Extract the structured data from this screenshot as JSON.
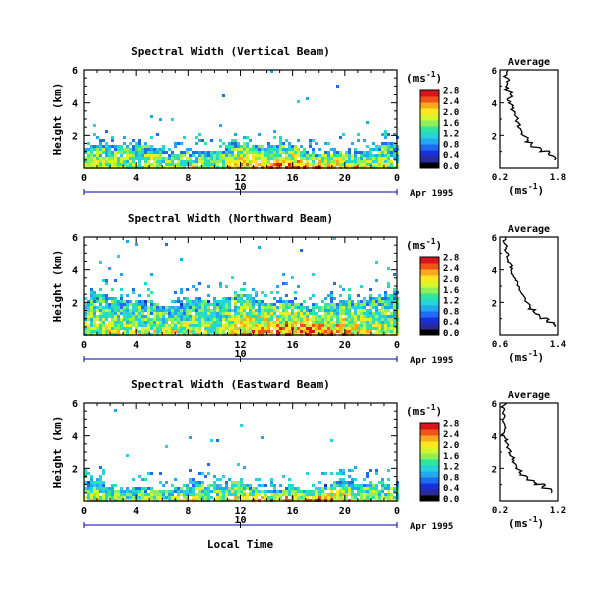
{
  "footer": {
    "xlabel": "Local Time"
  },
  "colorbar": {
    "unit_label": "(ms",
    "unit_exp": "-1",
    "unit_close": ")",
    "palette": [
      "#000000",
      "#2a2a9a",
      "#1830d8",
      "#1f6cf2",
      "#22a8ee",
      "#24d4d8",
      "#2ee6a0",
      "#8ef056",
      "#d6f52c",
      "#fbe820",
      "#fba81c",
      "#f25418",
      "#d8141c"
    ]
  },
  "chart_data": [
    {
      "type": "heatmap",
      "title": "Spectral Width (Vertical Beam)",
      "ylabel": "Height (km)",
      "ylim": [
        0,
        6
      ],
      "yticks": [
        "2",
        "4",
        "6"
      ],
      "xlim": [
        0,
        24
      ],
      "xticks": [
        "0",
        "4",
        "8",
        "12",
        "16",
        "20",
        "0"
      ],
      "date_marker": "10",
      "date_label": "Apr 1995",
      "colorbar_ticks": [
        "0.0",
        "0.4",
        "0.8",
        "1.2",
        "1.6",
        "2.0",
        "2.4",
        "2.8"
      ],
      "colorbar_max": 2.8,
      "layer_top_km": 1.3,
      "average_profile": {
        "title": "Average",
        "xlabel": "(ms",
        "xlabel_exp": "-1",
        "xlabel_close": ")",
        "xlim": [
          0.2,
          1.8
        ],
        "xticks": [
          "0.2",
          "1.8"
        ],
        "yticks": [
          "2",
          "4",
          "6"
        ],
        "height_km": [
          0.5,
          0.8,
          1.0,
          1.3,
          1.6,
          2.0,
          2.4,
          2.8,
          3.2,
          3.6,
          4.0,
          4.4,
          4.8,
          5.2,
          5.6,
          6.0
        ],
        "width": [
          1.7,
          1.55,
          1.3,
          1.05,
          0.95,
          0.8,
          0.72,
          0.66,
          0.58,
          0.55,
          0.45,
          0.5,
          0.38,
          0.42,
          0.35,
          0.4
        ]
      }
    },
    {
      "type": "heatmap",
      "title": "Spectral Width (Northward Beam)",
      "ylabel": "Height (km)",
      "ylim": [
        0,
        6
      ],
      "yticks": [
        "2",
        "4",
        "6"
      ],
      "xlim": [
        0,
        24
      ],
      "xticks": [
        "0",
        "4",
        "8",
        "12",
        "16",
        "20",
        "0"
      ],
      "date_marker": "10",
      "date_label": "Apr 1995",
      "colorbar_ticks": [
        "0.0",
        "0.4",
        "0.8",
        "1.2",
        "1.6",
        "2.0",
        "2.4",
        "2.8"
      ],
      "colorbar_max": 2.8,
      "layer_top_km": 2.2,
      "average_profile": {
        "title": "Average",
        "xlabel": "(ms",
        "xlabel_exp": "-1",
        "xlabel_close": ")",
        "xlim": [
          0.6,
          1.4
        ],
        "xticks": [
          "0.6",
          "1.4"
        ],
        "yticks": [
          "2",
          "4",
          "6"
        ],
        "height_km": [
          0.5,
          0.8,
          1.0,
          1.3,
          1.6,
          2.0,
          2.4,
          2.8,
          3.2,
          3.6,
          4.0,
          4.4,
          4.8,
          5.2,
          5.6,
          6.0
        ],
        "width": [
          1.35,
          1.25,
          1.15,
          1.08,
          1.0,
          0.95,
          0.9,
          0.85,
          0.82,
          0.78,
          0.75,
          0.72,
          0.7,
          0.68,
          0.66,
          0.7
        ]
      }
    },
    {
      "type": "heatmap",
      "title": "Spectral Width (Eastward Beam)",
      "ylabel": "Height (km)",
      "ylim": [
        0,
        6
      ],
      "yticks": [
        "2",
        "4",
        "6"
      ],
      "xlim": [
        0,
        24
      ],
      "xticks": [
        "0",
        "4",
        "8",
        "12",
        "16",
        "20",
        "0"
      ],
      "date_marker": "10",
      "date_label": "Apr 1995",
      "colorbar_ticks": [
        "0.0",
        "0.4",
        "0.8",
        "1.2",
        "1.6",
        "2.0",
        "2.4",
        "2.8"
      ],
      "colorbar_max": 2.8,
      "layer_top_km": 1.0,
      "average_profile": {
        "title": "Average",
        "xlabel": "(ms",
        "xlabel_exp": "-1",
        "xlabel_close": ")",
        "xlim": [
          0.2,
          1.2
        ],
        "xticks": [
          "0.2",
          "1.2"
        ],
        "yticks": [
          "2",
          "4",
          "6"
        ],
        "height_km": [
          0.5,
          0.8,
          1.0,
          1.3,
          1.6,
          2.0,
          2.4,
          2.8,
          3.2,
          3.6,
          4.0,
          4.4,
          4.8,
          5.2,
          5.6,
          6.0
        ],
        "width": [
          1.1,
          0.95,
          0.8,
          0.65,
          0.55,
          0.5,
          0.42,
          0.38,
          0.34,
          0.3,
          0.26,
          0.28,
          0.24,
          0.27,
          0.25,
          0.3
        ]
      }
    }
  ]
}
